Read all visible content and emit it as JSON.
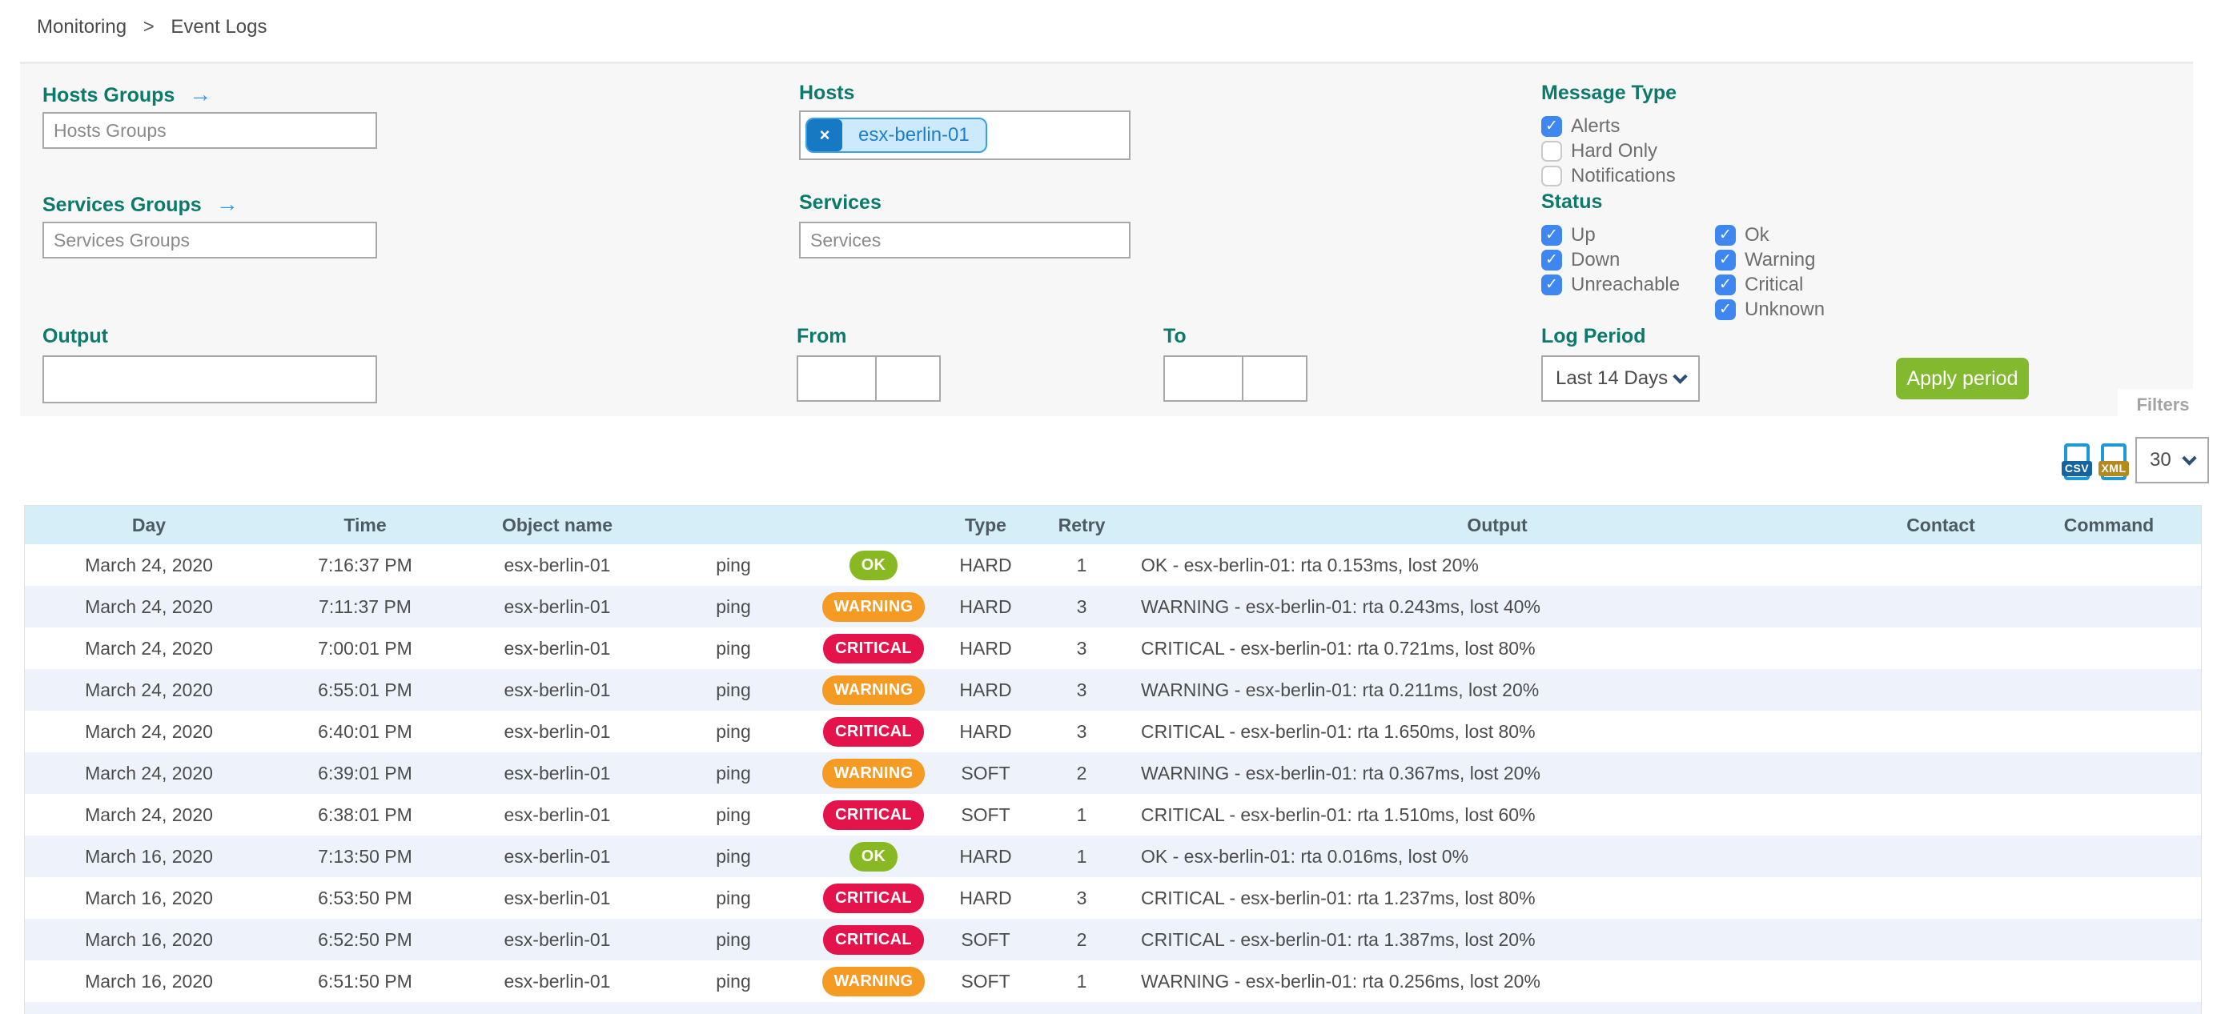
{
  "breadcrumb": {
    "items": [
      "Monitoring",
      "Event Logs"
    ],
    "separator": ">"
  },
  "filters": {
    "panel_label": "Filters",
    "hosts_groups": {
      "label": "Hosts Groups",
      "arrow_icon": "→",
      "placeholder": "Hosts Groups",
      "value": ""
    },
    "services_groups": {
      "label": "Services Groups",
      "arrow_icon": "→",
      "placeholder": "Services Groups",
      "value": ""
    },
    "hosts": {
      "label": "Hosts",
      "selected_tag": "esx-berlin-01",
      "remove_icon": "×"
    },
    "services": {
      "label": "Services",
      "placeholder": "Services",
      "value": ""
    },
    "output": {
      "label": "Output",
      "value": ""
    },
    "from": {
      "label": "From",
      "date_value": "",
      "time_value": ""
    },
    "to": {
      "label": "To",
      "date_value": "",
      "time_value": ""
    },
    "message_type": {
      "label": "Message Type",
      "options": [
        {
          "label": "Alerts",
          "checked": true
        },
        {
          "label": "Hard Only",
          "checked": false
        },
        {
          "label": "Notifications",
          "checked": false
        }
      ]
    },
    "status": {
      "label": "Status",
      "col1": [
        {
          "label": "Up",
          "checked": true
        },
        {
          "label": "Down",
          "checked": true
        },
        {
          "label": "Unreachable",
          "checked": true
        }
      ],
      "col2": [
        {
          "label": "Ok",
          "checked": true
        },
        {
          "label": "Warning",
          "checked": true
        },
        {
          "label": "Critical",
          "checked": true
        },
        {
          "label": "Unknown",
          "checked": true
        }
      ]
    },
    "log_period": {
      "label": "Log Period",
      "selected": "Last 14 Days"
    },
    "apply_button": "Apply period"
  },
  "toolbar": {
    "csv_label": "CSV",
    "xml_label": "XML",
    "page_size": "30"
  },
  "table": {
    "columns": [
      "Day",
      "Time",
      "Object name",
      "",
      "",
      "Type",
      "Retry",
      "Output",
      "Contact",
      "Command"
    ],
    "rows": [
      {
        "day": "March 24, 2020",
        "time": "7:16:37 PM",
        "object": "esx-berlin-01",
        "service": "ping",
        "status": "OK",
        "type": "HARD",
        "retry": "1",
        "output": "OK - esx-berlin-01: rta 0.153ms, lost 20%",
        "contact": "",
        "command": ""
      },
      {
        "day": "March 24, 2020",
        "time": "7:11:37 PM",
        "object": "esx-berlin-01",
        "service": "ping",
        "status": "WARNING",
        "type": "HARD",
        "retry": "3",
        "output": "WARNING - esx-berlin-01: rta 0.243ms, lost 40%",
        "contact": "",
        "command": ""
      },
      {
        "day": "March 24, 2020",
        "time": "7:00:01 PM",
        "object": "esx-berlin-01",
        "service": "ping",
        "status": "CRITICAL",
        "type": "HARD",
        "retry": "3",
        "output": "CRITICAL - esx-berlin-01: rta 0.721ms, lost 80%",
        "contact": "",
        "command": ""
      },
      {
        "day": "March 24, 2020",
        "time": "6:55:01 PM",
        "object": "esx-berlin-01",
        "service": "ping",
        "status": "WARNING",
        "type": "HARD",
        "retry": "3",
        "output": "WARNING - esx-berlin-01: rta 0.211ms, lost 20%",
        "contact": "",
        "command": ""
      },
      {
        "day": "March 24, 2020",
        "time": "6:40:01 PM",
        "object": "esx-berlin-01",
        "service": "ping",
        "status": "CRITICAL",
        "type": "HARD",
        "retry": "3",
        "output": "CRITICAL - esx-berlin-01: rta 1.650ms, lost 80%",
        "contact": "",
        "command": ""
      },
      {
        "day": "March 24, 2020",
        "time": "6:39:01 PM",
        "object": "esx-berlin-01",
        "service": "ping",
        "status": "WARNING",
        "type": "SOFT",
        "retry": "2",
        "output": "WARNING - esx-berlin-01: rta 0.367ms, lost 20%",
        "contact": "",
        "command": ""
      },
      {
        "day": "March 24, 2020",
        "time": "6:38:01 PM",
        "object": "esx-berlin-01",
        "service": "ping",
        "status": "CRITICAL",
        "type": "SOFT",
        "retry": "1",
        "output": "CRITICAL - esx-berlin-01: rta 1.510ms, lost 60%",
        "contact": "",
        "command": ""
      },
      {
        "day": "March 16, 2020",
        "time": "7:13:50 PM",
        "object": "esx-berlin-01",
        "service": "ping",
        "status": "OK",
        "type": "HARD",
        "retry": "1",
        "output": "OK - esx-berlin-01: rta 0.016ms, lost 0%",
        "contact": "",
        "command": ""
      },
      {
        "day": "March 16, 2020",
        "time": "6:53:50 PM",
        "object": "esx-berlin-01",
        "service": "ping",
        "status": "CRITICAL",
        "type": "HARD",
        "retry": "3",
        "output": "CRITICAL - esx-berlin-01: rta 1.237ms, lost 80%",
        "contact": "",
        "command": ""
      },
      {
        "day": "March 16, 2020",
        "time": "6:52:50 PM",
        "object": "esx-berlin-01",
        "service": "ping",
        "status": "CRITICAL",
        "type": "SOFT",
        "retry": "2",
        "output": "CRITICAL - esx-berlin-01: rta 1.387ms, lost 20%",
        "contact": "",
        "command": ""
      },
      {
        "day": "March 16, 2020",
        "time": "6:51:50 PM",
        "object": "esx-berlin-01",
        "service": "ping",
        "status": "WARNING",
        "type": "SOFT",
        "retry": "1",
        "output": "WARNING - esx-berlin-01: rta 0.256ms, lost 20%",
        "contact": "",
        "command": ""
      }
    ]
  },
  "colors": {
    "label_teal": "#0c7a6b",
    "checkbox_blue": "#3e86f0",
    "apply_green": "#83b92e",
    "status_ok": "#88b922",
    "status_warning": "#f59a23",
    "status_critical": "#e4134c",
    "table_header_bg": "#d6eef8",
    "row_alt_bg": "#eef2fb",
    "tag_bg": "#cdeafc",
    "tag_border": "#3aa0e8",
    "tag_remove_bg": "#1779c4"
  }
}
